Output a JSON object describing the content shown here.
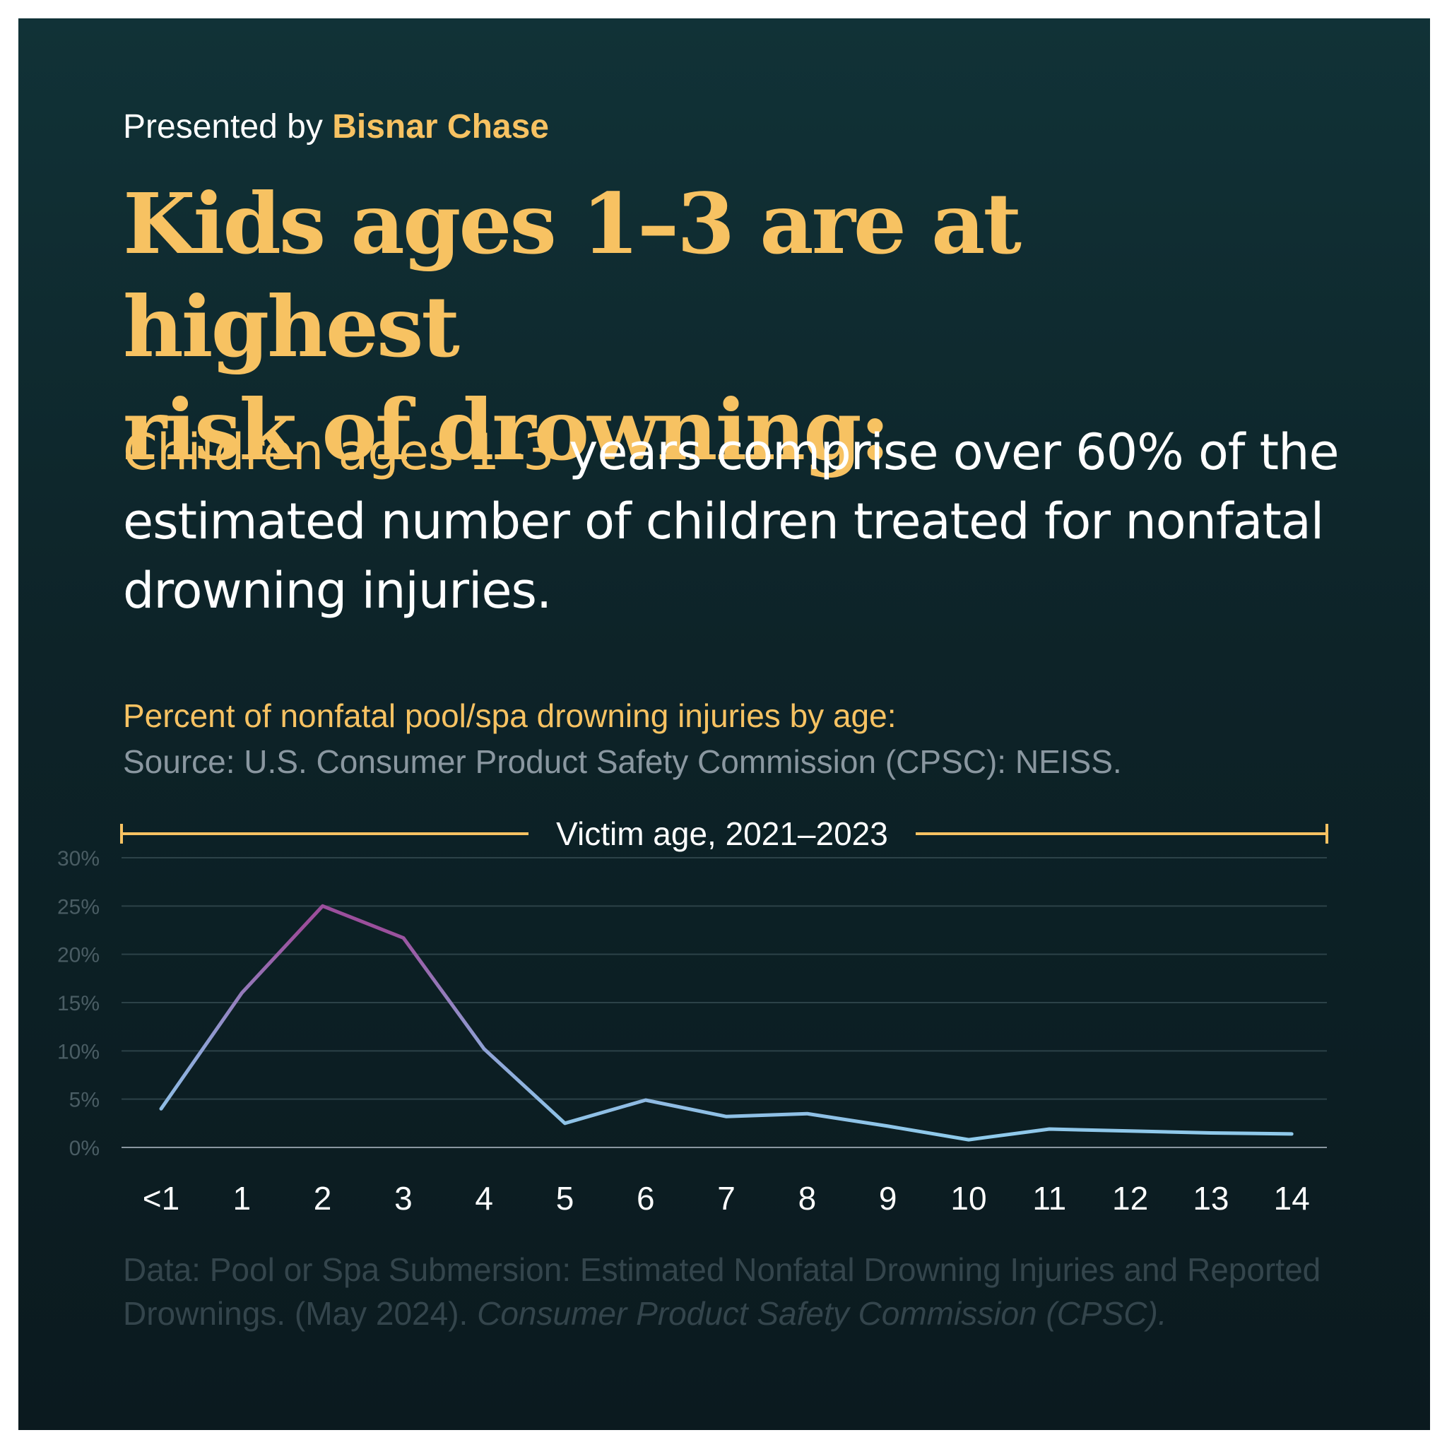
{
  "header": {
    "presented_prefix": "Presented by",
    "brand": "Bisnar Chase",
    "headline_line1": "Kids ages 1–3 are at highest",
    "headline_line2": "risk of drowning:"
  },
  "lead": {
    "highlight": "Children ages 1–3",
    "rest": " years comprise over 60% of the estimated number of children treated for nonfatal drowning injuries."
  },
  "chart_data": {
    "type": "line",
    "title": "Percent of nonfatal pool/spa drowning injuries by age:",
    "source": "Source: U.S. Consumer Product Safety Commission (CPSC): NEISS.",
    "xlabel": "Victim age, 2021–2023",
    "ylabel": "",
    "categories": [
      "<1",
      "1",
      "2",
      "3",
      "4",
      "5",
      "6",
      "7",
      "8",
      "9",
      "10",
      "11",
      "12",
      "13",
      "14"
    ],
    "values": [
      4,
      16,
      25,
      21.7,
      10.2,
      2.5,
      4.9,
      3.2,
      3.5,
      2.2,
      0.8,
      1.9,
      1.7,
      1.5,
      1.4
    ],
    "ylim": [
      0,
      30
    ],
    "yticks": [
      0,
      5,
      10,
      15,
      20,
      25,
      30
    ],
    "ytick_labels": [
      "0%",
      "5%",
      "10%",
      "15%",
      "20%",
      "25%",
      "30%"
    ],
    "grid": true,
    "colors": {
      "line_low": "#8fd0ee",
      "line_high": "#9b4f9c",
      "axis_bracket": "#f7c262",
      "grid": "#2c4248"
    }
  },
  "footnote": {
    "text": "Data: Pool or Spa Submersion: Estimated Nonfatal Drowning Injuries and Reported Drownings. (May 2024). ",
    "italic": "Consumer Product Safety Commission (CPSC)."
  }
}
